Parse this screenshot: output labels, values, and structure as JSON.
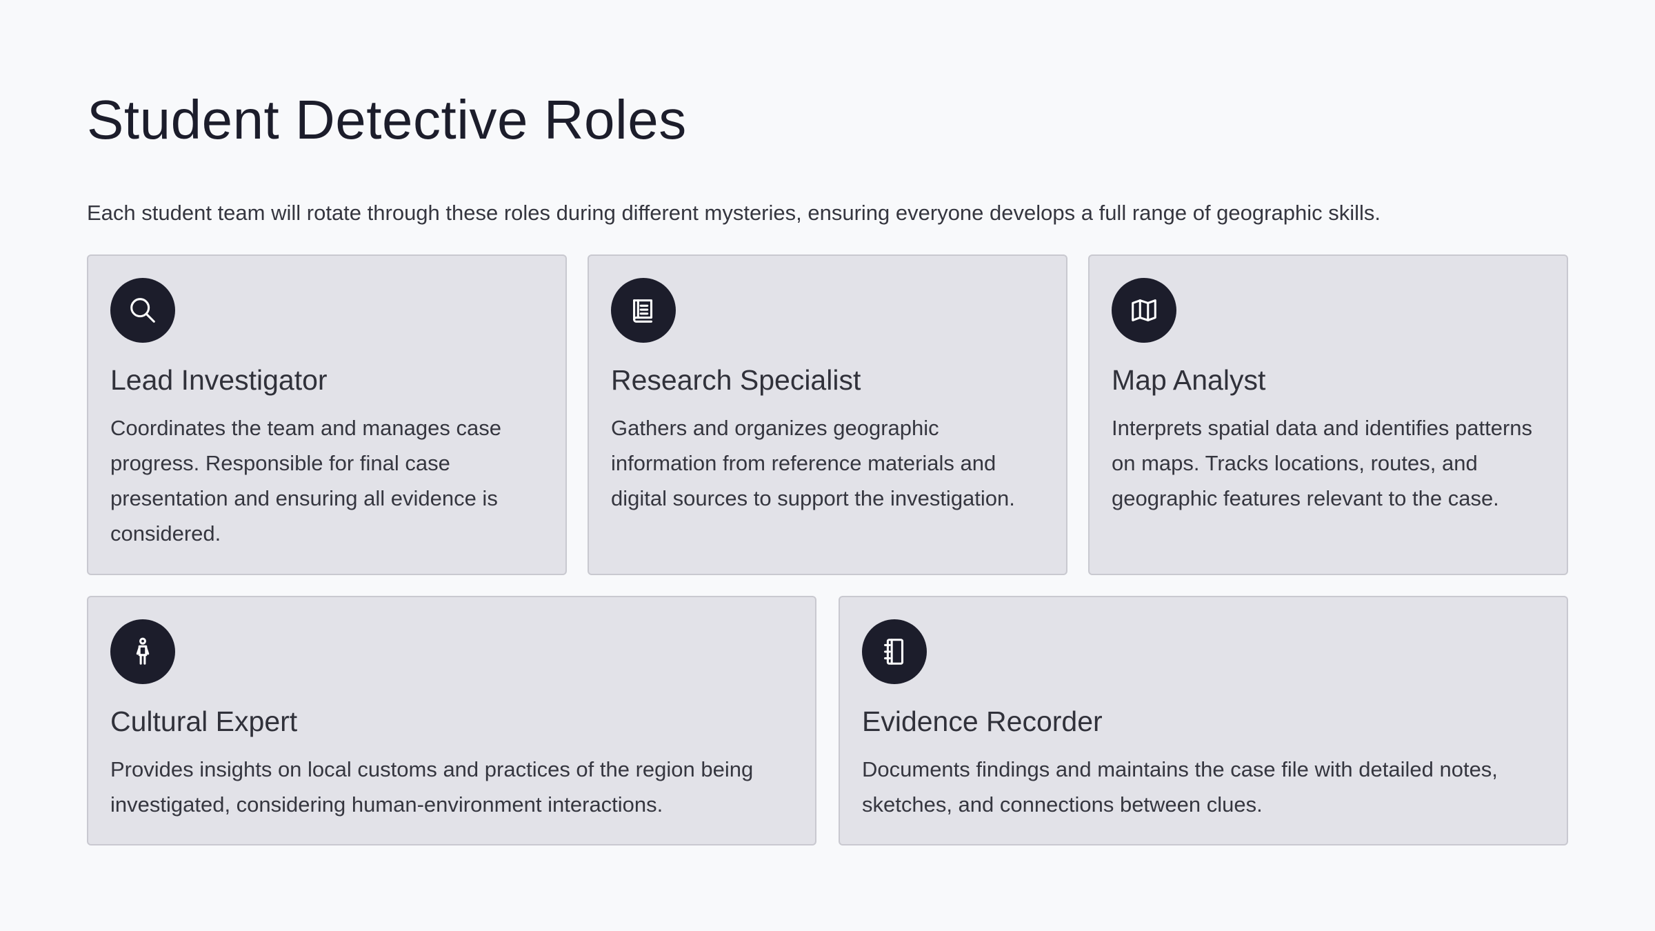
{
  "page": {
    "title": "Student Detective Roles",
    "intro": "Each student team will rotate through these roles during different mysteries, ensuring everyone develops a full range of geographic skills."
  },
  "colors": {
    "background": "#f8f9fb",
    "card_background": "#e2e2e8",
    "icon_circle": "#1c1d2b",
    "text_dark": "#1c1d2b"
  },
  "roles": [
    {
      "icon": "magnifying-glass-icon",
      "title": "Lead Investigator",
      "description": "Coordinates the team and manages case progress. Responsible for final case presentation and ensuring all evidence is considered."
    },
    {
      "icon": "book-icon",
      "title": "Research Specialist",
      "description": "Gathers and organizes geographic information from reference materials and digital sources to support the investigation."
    },
    {
      "icon": "map-icon",
      "title": "Map Analyst",
      "description": "Interprets spatial data and identifies patterns on maps. Tracks locations, routes, and geographic features relevant to the case."
    },
    {
      "icon": "person-icon",
      "title": "Cultural Expert",
      "description": "Provides insights on local customs and practices of the region being investigated, considering human-environment interactions."
    },
    {
      "icon": "notebook-icon",
      "title": "Evidence Recorder",
      "description": "Documents findings and maintains the case file with detailed notes, sketches, and connections between clues."
    }
  ]
}
